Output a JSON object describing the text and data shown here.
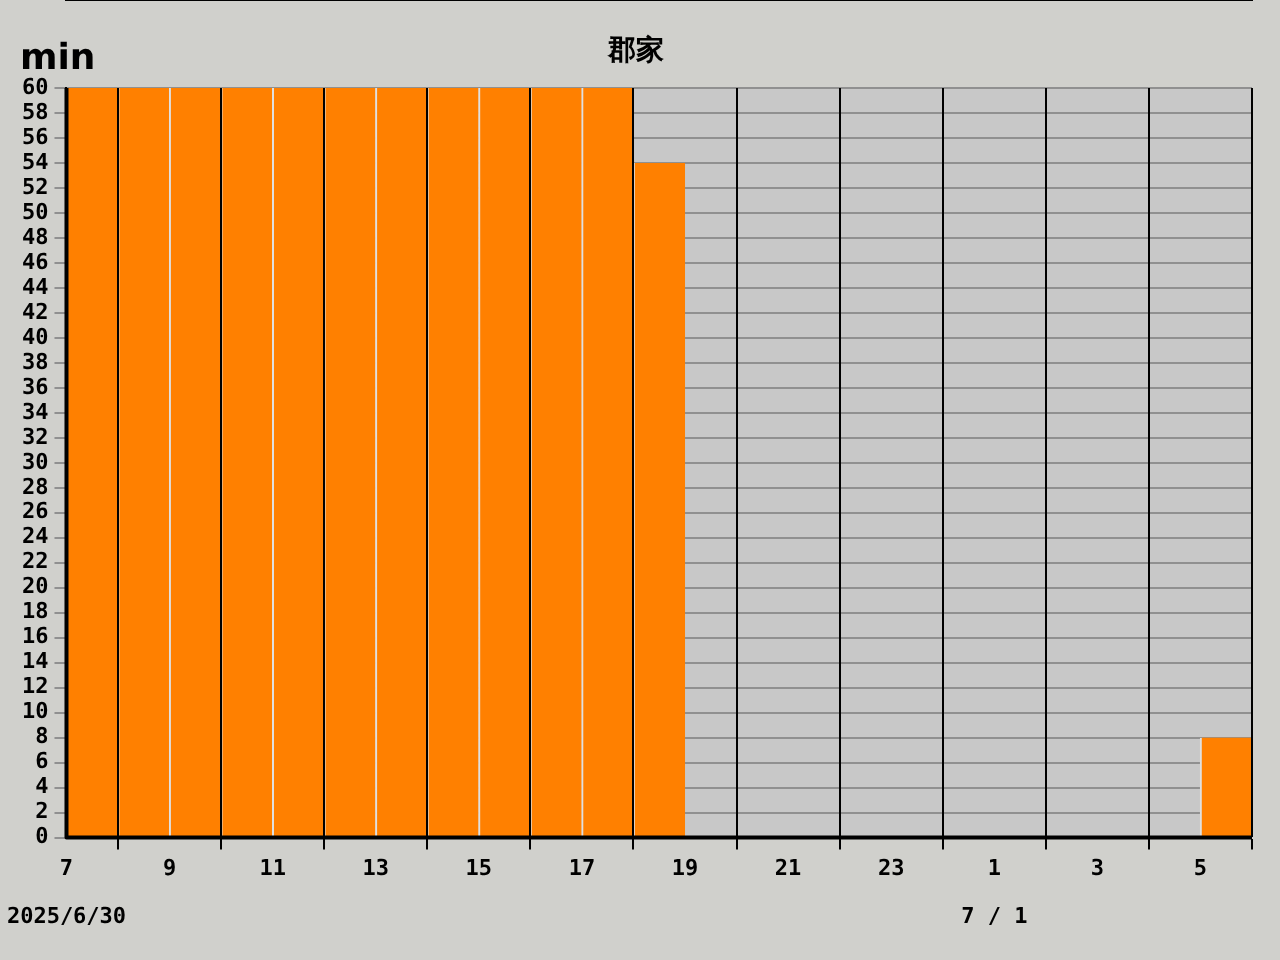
{
  "chart_data": {
    "type": "histogram",
    "title": "郡家",
    "ylabel": "min",
    "bins": [
      "2025-06-30T07:00",
      "2025-06-30T08:00",
      "2025-06-30T09:00",
      "2025-06-30T10:00",
      "2025-06-30T11:00",
      "2025-06-30T12:00",
      "2025-06-30T13:00",
      "2025-06-30T14:00",
      "2025-06-30T15:00",
      "2025-06-30T16:00",
      "2025-06-30T17:00",
      "2025-06-30T18:00",
      "2025-06-30T19:00",
      "2025-06-30T20:00",
      "2025-06-30T21:00",
      "2025-06-30T22:00",
      "2025-06-30T23:00",
      "2025-07-01T00:00",
      "2025-07-01T01:00",
      "2025-07-01T02:00",
      "2025-07-01T03:00",
      "2025-07-01T04:00",
      "2025-07-01T05:00",
      "2025-07-01T06:00"
    ],
    "values": [
      60,
      60,
      60,
      60,
      60,
      60,
      60,
      60,
      60,
      60,
      60,
      54,
      0,
      0,
      0,
      0,
      0,
      0,
      0,
      0,
      0,
      0,
      8
    ],
    "color": "#ff8000",
    "xlim": [
      "2025-06-30T07:00",
      "2025-07-01T06:00"
    ],
    "xticks": [
      {
        "value": "2025-06-30T07:00",
        "label": "7"
      },
      {
        "value": "2025-06-30T09:00",
        "label": "9"
      },
      {
        "value": "2025-06-30T11:00",
        "label": "11"
      },
      {
        "value": "2025-06-30T13:00",
        "label": "13"
      },
      {
        "value": "2025-06-30T15:00",
        "label": "15"
      },
      {
        "value": "2025-06-30T17:00",
        "label": "17"
      },
      {
        "value": "2025-06-30T19:00",
        "label": "19"
      },
      {
        "value": "2025-06-30T21:00",
        "label": "21"
      },
      {
        "value": "2025-06-30T23:00",
        "label": "23"
      },
      {
        "value": "2025-07-01T01:00",
        "label": "1"
      },
      {
        "value": "2025-07-01T03:00",
        "label": "3"
      },
      {
        "value": "2025-07-01T05:00",
        "label": "5"
      }
    ],
    "ylim": [
      0,
      60
    ],
    "yticks": [
      0,
      2,
      4,
      6,
      8,
      10,
      12,
      14,
      16,
      18,
      20,
      22,
      24,
      26,
      28,
      30,
      32,
      34,
      36,
      38,
      40,
      42,
      44,
      46,
      48,
      50,
      52,
      54,
      56,
      58,
      60
    ],
    "grid": true,
    "legend": false,
    "annotations": [
      "2025/6/30",
      "7 / 1"
    ]
  }
}
